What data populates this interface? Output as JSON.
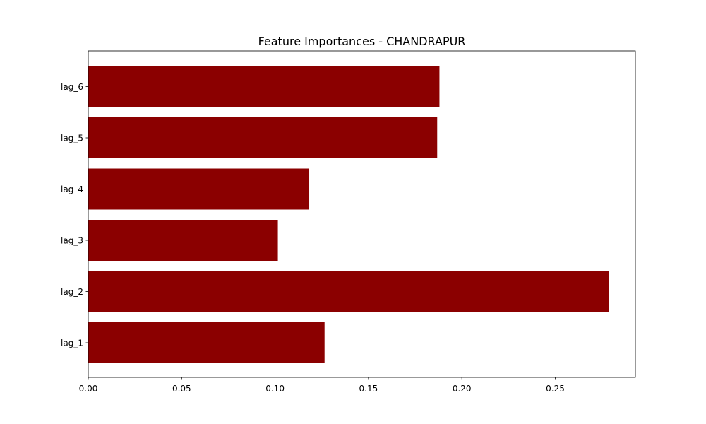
{
  "chart_data": {
    "type": "bar",
    "orientation": "horizontal",
    "title": "Feature Importances - CHANDRAPUR",
    "xlabel": "",
    "ylabel": "",
    "categories": [
      "lag_1",
      "lag_2",
      "lag_3",
      "lag_4",
      "lag_5",
      "lag_6"
    ],
    "values": [
      0.1265,
      0.2788,
      0.1015,
      0.1183,
      0.1868,
      0.188
    ],
    "xlim": [
      0,
      0.2929
    ],
    "xticks": [
      0.0,
      0.05,
      0.1,
      0.15,
      0.2,
      0.25
    ],
    "xtick_labels": [
      "0.00",
      "0.05",
      "0.10",
      "0.15",
      "0.20",
      "0.25"
    ],
    "bar_color": "#8b0000",
    "grid": false
  }
}
